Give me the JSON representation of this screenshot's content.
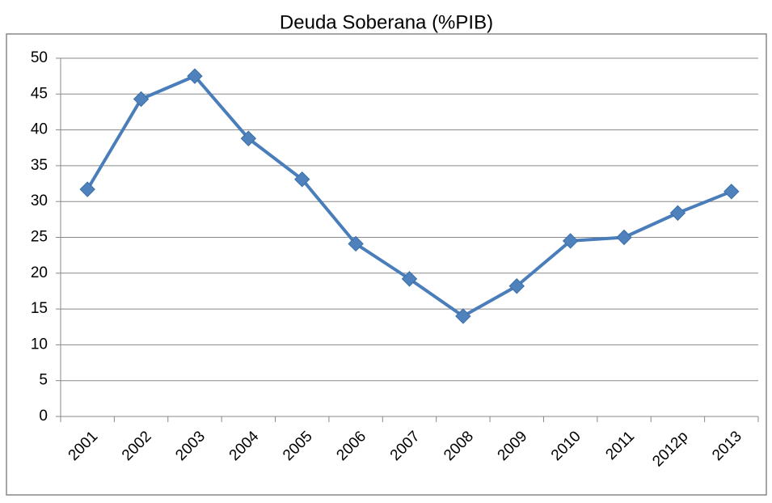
{
  "chart_data": {
    "type": "line",
    "title": "Deuda Soberana (%PIB)",
    "categories": [
      "2001",
      "2002",
      "2003",
      "2004",
      "2005",
      "2006",
      "2007",
      "2008",
      "2009",
      "2010",
      "2011",
      "2012p",
      "2013"
    ],
    "series": [
      {
        "name": "Deuda Soberana (%PIB)",
        "color": "#4a7ebb",
        "values": [
          31.7,
          44.3,
          47.5,
          38.8,
          33.1,
          24.1,
          19.2,
          14.0,
          18.2,
          24.5,
          25.0,
          28.4,
          31.4
        ]
      }
    ],
    "ylim": [
      0,
      50
    ],
    "yticks": [
      0,
      5,
      10,
      15,
      20,
      25,
      30,
      35,
      40,
      45,
      50
    ],
    "grid": true,
    "legend": false
  }
}
